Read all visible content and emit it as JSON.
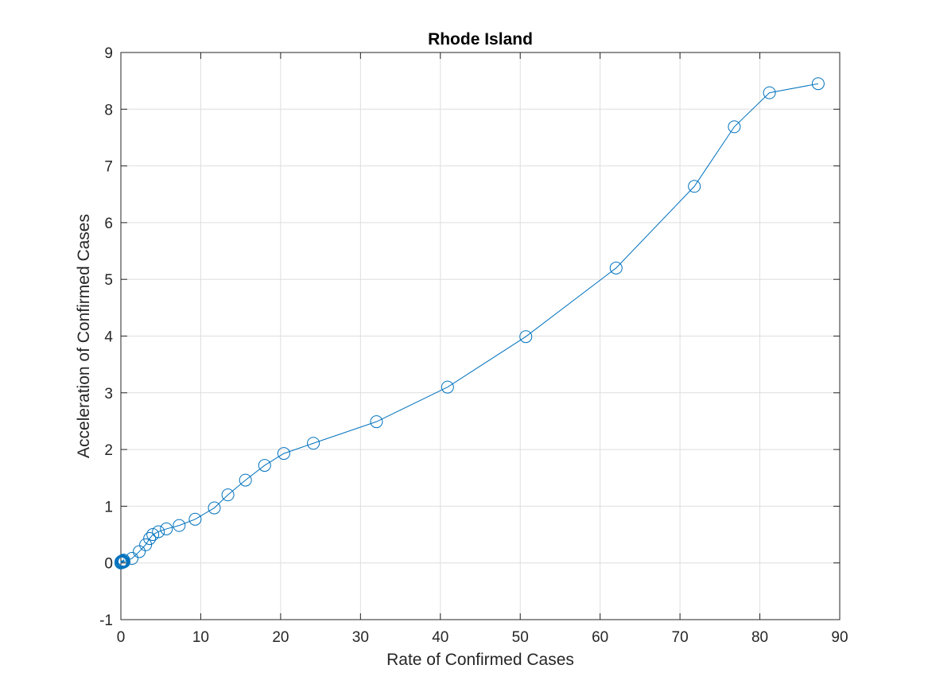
{
  "chart_data": {
    "type": "line",
    "title": "Rhode Island",
    "xlabel": "Rate of Confirmed Cases",
    "ylabel": "Acceleration of Confirmed Cases",
    "xlim": [
      0,
      90
    ],
    "ylim": [
      -1,
      9
    ],
    "xticks": [
      0,
      10,
      20,
      30,
      40,
      50,
      60,
      70,
      80,
      90
    ],
    "yticks": [
      -1,
      0,
      1,
      2,
      3,
      4,
      5,
      6,
      7,
      8,
      9
    ],
    "grid": true,
    "marker": "circle",
    "colors": {
      "series": "#0072bd",
      "grid": "#dedede",
      "axis": "#262626"
    },
    "series": [
      {
        "x": [
          0,
          0,
          0.05,
          0.1,
          0.15,
          0.2,
          0.25,
          0.3,
          0.35,
          0.4,
          1.4,
          2.3,
          3.1,
          3.6,
          4.0,
          4.7,
          5.7,
          7.3,
          9.3,
          11.7,
          13.4,
          15.6,
          18.0,
          20.4,
          24.1,
          32.0,
          40.9,
          50.7,
          62.0,
          71.8,
          76.8,
          81.2,
          87.3
        ],
        "y": [
          0,
          0.02,
          0.01,
          0.03,
          0.02,
          0.04,
          0.01,
          0.03,
          0.05,
          0.02,
          0.08,
          0.2,
          0.32,
          0.43,
          0.5,
          0.55,
          0.6,
          0.66,
          0.77,
          0.97,
          1.2,
          1.46,
          1.72,
          1.93,
          2.11,
          2.49,
          3.1,
          3.99,
          5.2,
          6.64,
          7.69,
          8.29,
          8.45
        ]
      }
    ]
  }
}
